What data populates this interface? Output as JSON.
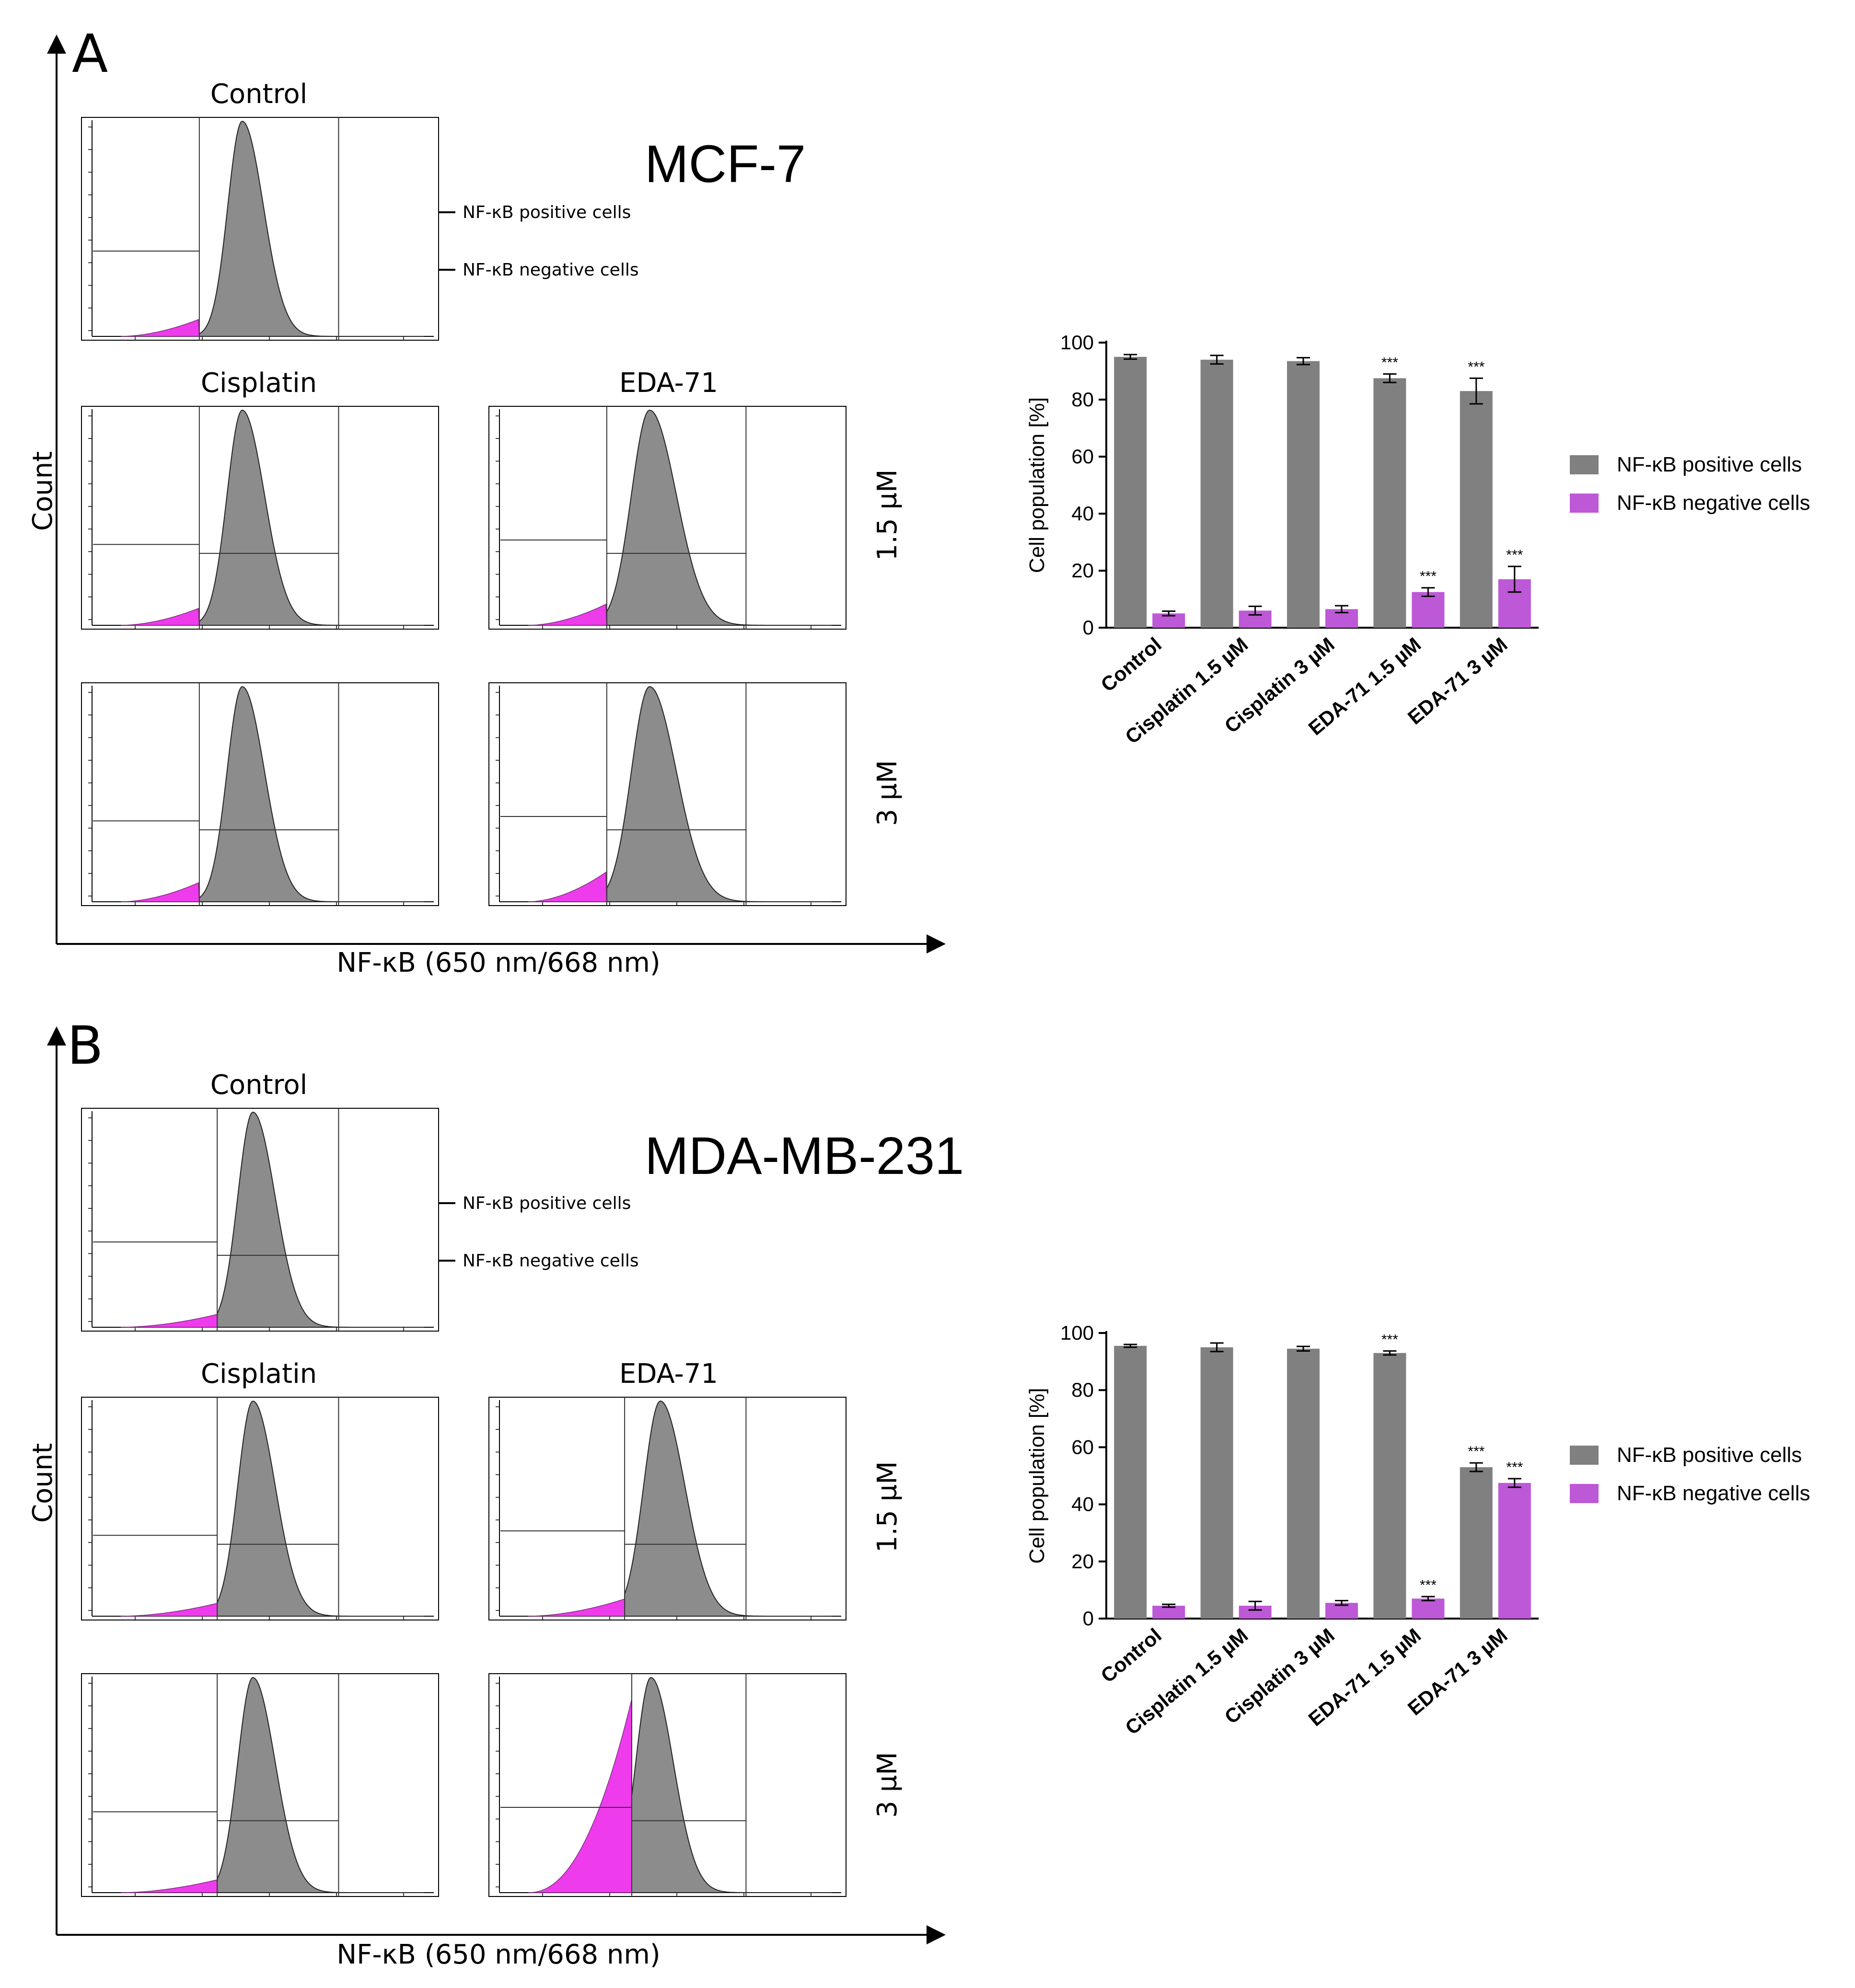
{
  "colors": {
    "positive": "#808080",
    "negative": "#bd58d6",
    "hist_negative": "#ee3cec",
    "hist_positive": "#8c8c8c",
    "axis": "#000000",
    "gate": "#333333"
  },
  "panels": [
    {
      "letter": "A",
      "cell_line": "MCF-7",
      "row_labels": [
        "1.5 µM",
        "3 µM"
      ],
      "col_labels": [
        "Cisplatin",
        "EDA-71"
      ],
      "control_label": "Control",
      "y_axis_label": "Count",
      "x_axis_label": "NF-κB (650 nm/668 nm)",
      "annotations": [
        "NF-κB positive cells",
        "NF-κB negative cells"
      ],
      "histograms": [
        {
          "id": "control",
          "peak": 0.45,
          "width": 0.095,
          "neg_level": 0.08
        },
        {
          "id": "cis-1.5",
          "peak": 0.45,
          "width": 0.1,
          "neg_level": 0.08
        },
        {
          "id": "eda-1.5",
          "peak": 0.45,
          "width": 0.12,
          "neg_level": 0.1
        },
        {
          "id": "cis-3",
          "peak": 0.45,
          "width": 0.1,
          "neg_level": 0.09
        },
        {
          "id": "eda-3",
          "peak": 0.45,
          "width": 0.12,
          "neg_level": 0.14
        }
      ]
    },
    {
      "letter": "B",
      "cell_line": "MDA-MB-231",
      "row_labels": [
        "1.5 µM",
        "3 µM"
      ],
      "col_labels": [
        "Cisplatin",
        "EDA-71"
      ],
      "control_label": "Control",
      "y_axis_label": "Count",
      "x_axis_label": "NF-κB (650 nm/668 nm)",
      "annotations": [
        "NF-κB positive cells",
        "NF-κB negative cells"
      ],
      "histograms": [
        {
          "id": "control",
          "peak": 0.48,
          "width": 0.1,
          "neg_level": 0.06
        },
        {
          "id": "cis-1.5",
          "peak": 0.48,
          "width": 0.1,
          "neg_level": 0.06
        },
        {
          "id": "eda-1.5",
          "peak": 0.48,
          "width": 0.11,
          "neg_level": 0.08
        },
        {
          "id": "cis-3",
          "peak": 0.48,
          "width": 0.1,
          "neg_level": 0.06
        },
        {
          "id": "eda-3",
          "peak": 0.4,
          "width": 0.1,
          "neg_level": 0.9
        }
      ]
    }
  ],
  "chart_data": [
    {
      "type": "bar",
      "panel": "A",
      "ylabel": "Cell population [%]",
      "ylim": [
        0,
        100
      ],
      "yticks": [
        "0",
        "20",
        "40",
        "60",
        "80",
        "100"
      ],
      "categories": [
        "Control",
        "Cisplatin 1.5 µM",
        "Cisplatin 3 µM",
        "EDA-71 1.5 µM",
        "EDA-71 3 µM"
      ],
      "series": [
        {
          "name": "NF-κB positive cells",
          "values": [
            95,
            94,
            93.5,
            87.5,
            83
          ],
          "errors": [
            0.8,
            1.5,
            1.2,
            1.5,
            4.5
          ],
          "significance": [
            "",
            "",
            "",
            "***",
            "***"
          ]
        },
        {
          "name": "NF-κB negative cells",
          "values": [
            5,
            6,
            6.5,
            12.5,
            17
          ],
          "errors": [
            0.8,
            1.5,
            1.2,
            1.5,
            4.5
          ],
          "significance": [
            "",
            "",
            "",
            "***",
            "***"
          ]
        }
      ]
    },
    {
      "type": "bar",
      "panel": "B",
      "ylabel": "Cell population [%]",
      "ylim": [
        0,
        100
      ],
      "yticks": [
        "0",
        "20",
        "40",
        "60",
        "80",
        "100"
      ],
      "categories": [
        "Control",
        "Cisplatin 1.5 µM",
        "Cisplatin 3 µM",
        "EDA-71 1.5 µM",
        "EDA-71 3 µM"
      ],
      "series": [
        {
          "name": "NF-κB positive cells",
          "values": [
            95.5,
            95,
            94.5,
            93,
            53
          ],
          "errors": [
            0.5,
            1.5,
            0.8,
            0.7,
            1.5
          ],
          "significance": [
            "",
            "",
            "",
            "***",
            "***"
          ]
        },
        {
          "name": "NF-κB negative cells",
          "values": [
            4.5,
            4.5,
            5.5,
            7,
            47.5
          ],
          "errors": [
            0.5,
            1.5,
            0.8,
            0.7,
            1.5
          ],
          "significance": [
            "",
            "",
            "",
            "***",
            "***"
          ]
        }
      ]
    }
  ]
}
